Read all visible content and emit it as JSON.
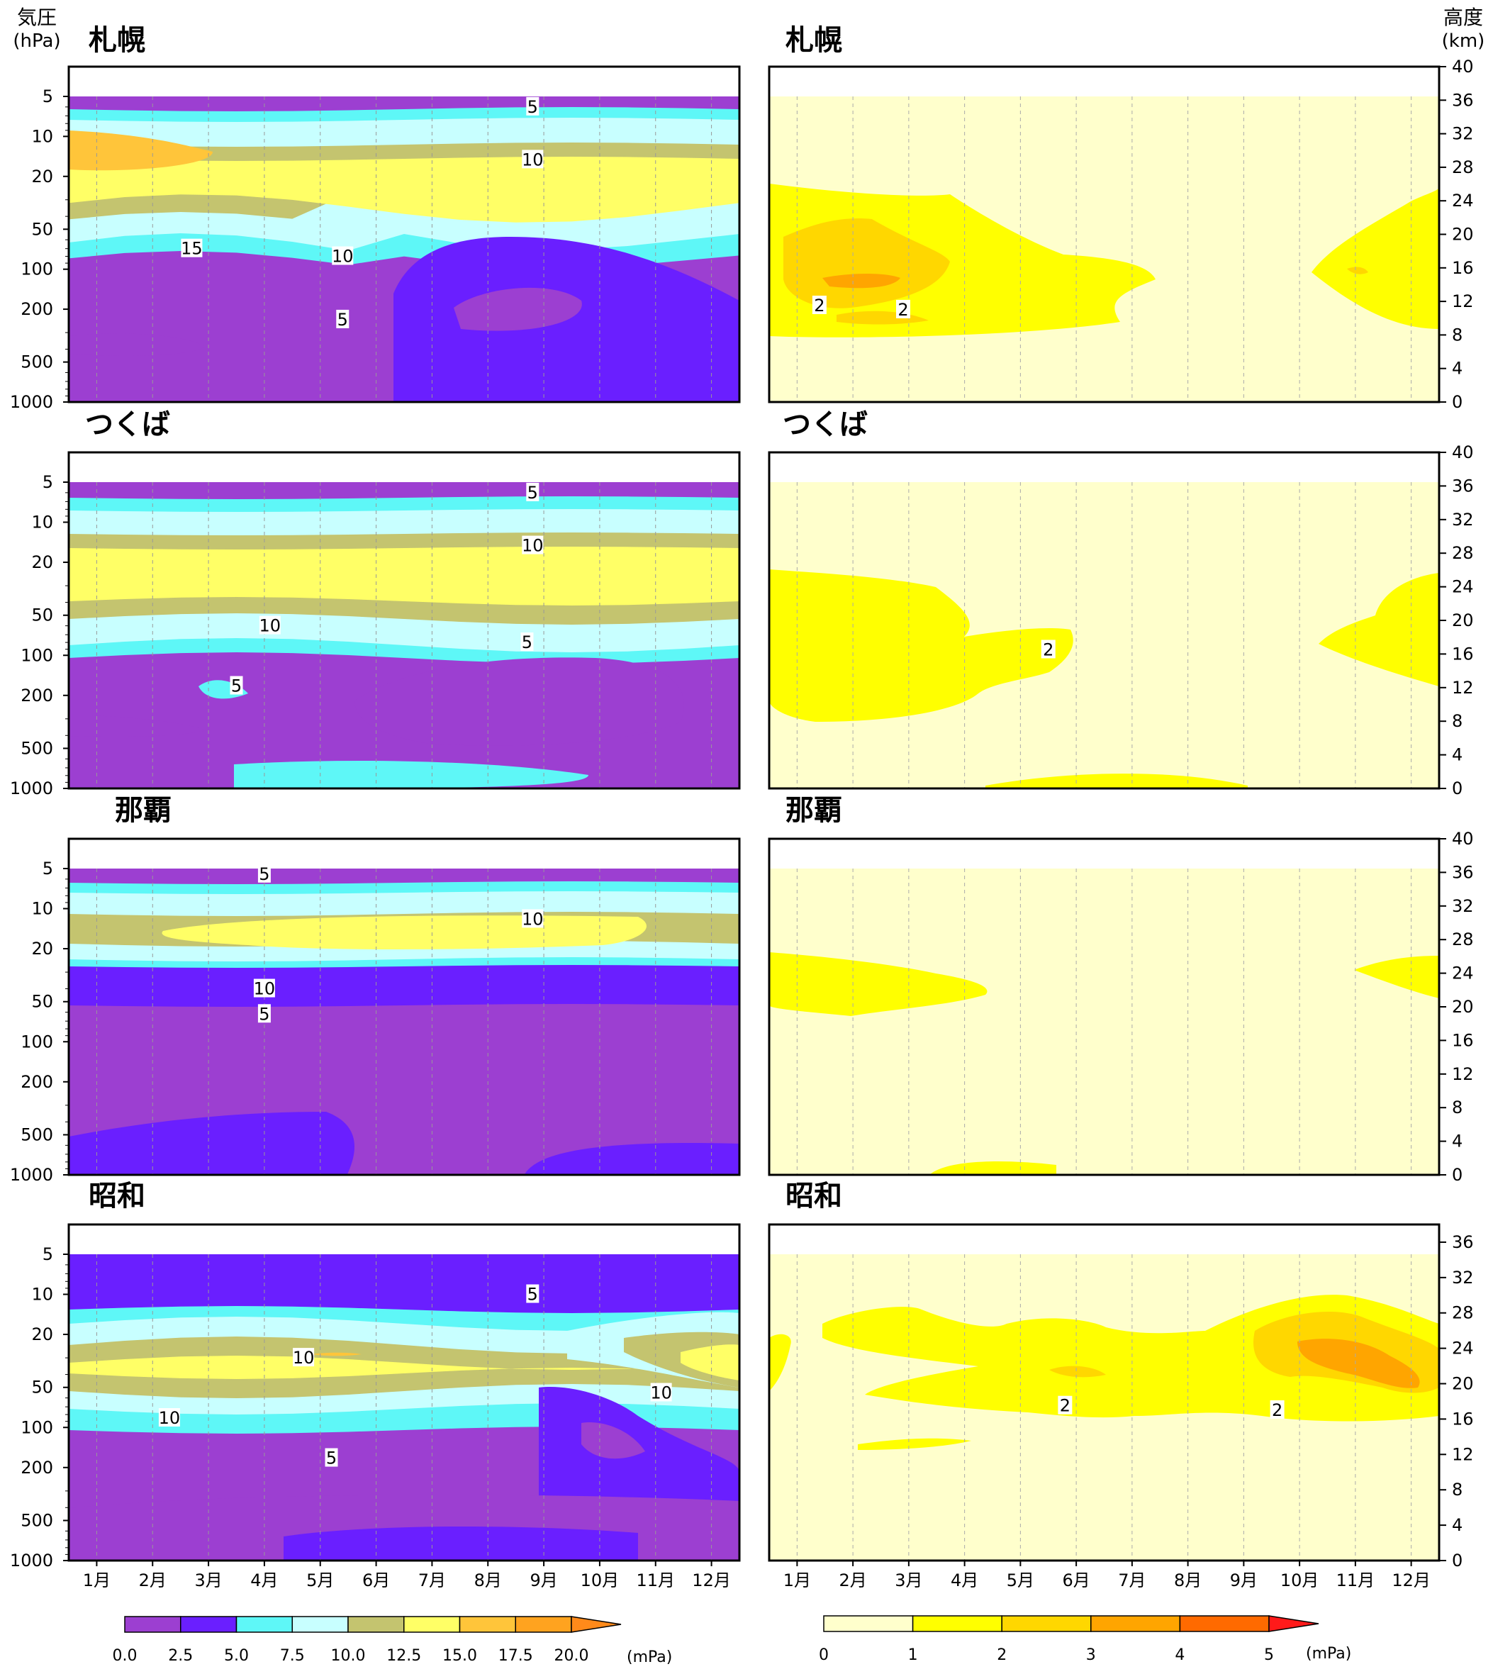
{
  "labels": {
    "pressure_header": "気圧",
    "pressure_unit": "(hPa)",
    "height_header": "高度",
    "height_unit": "(km)",
    "colorbar_unit": "(mPa)"
  },
  "months": [
    "1月",
    "2月",
    "3月",
    "4月",
    "5月",
    "6月",
    "7月",
    "8月",
    "9月",
    "10月",
    "11月",
    "12月"
  ],
  "pressure_ticks": [
    "5",
    "10",
    "20",
    "50",
    "100",
    "200",
    "500",
    "1000"
  ],
  "height_ticks": [
    "40",
    "36",
    "32",
    "28",
    "24",
    "20",
    "16",
    "12",
    "8",
    "4",
    "0"
  ],
  "height_ticks_showa": [
    "36",
    "32",
    "28",
    "24",
    "20",
    "16",
    "12",
    "8",
    "4",
    "0"
  ],
  "colors": {
    "left_scale": [
      "#9c3fd1",
      "#6a1fff",
      "#5ef7f7",
      "#c8ffff",
      "#c4c46f",
      "#ffff66",
      "#ffc53a",
      "#ffa31f"
    ],
    "left_extend": "#ff8a1a",
    "right_scale": [
      "#ffffcc",
      "#ffff00",
      "#ffd700",
      "#ffa500",
      "#ff6a00"
    ],
    "right_extend": "#ff1a1a"
  },
  "colorbar_left_ticks": [
    "0.0",
    "2.5",
    "5.0",
    "7.5",
    "10.0",
    "12.5",
    "15.0",
    "17.5",
    "20.0"
  ],
  "colorbar_right_ticks": [
    "0",
    "1",
    "2",
    "3",
    "4",
    "5"
  ],
  "chart_data": [
    {
      "type": "heatmap",
      "station": "札幌",
      "panel": "left",
      "units": "mPa",
      "yaxis": "pressure (hPa)",
      "title": "札幌",
      "contour_labels": [
        {
          "month": 8.8,
          "pressure": 6,
          "text": "5"
        },
        {
          "month": 8.8,
          "pressure": 15,
          "text": "10"
        },
        {
          "month": 2.7,
          "pressure": 70,
          "text": "15"
        },
        {
          "month": 5.4,
          "pressure": 80,
          "text": "10"
        },
        {
          "month": 5.4,
          "pressure": 240,
          "text": "5"
        }
      ]
    },
    {
      "type": "heatmap",
      "station": "札幌",
      "panel": "right",
      "units": "mPa",
      "yaxis": "height (km)",
      "title": "札幌",
      "contour_labels": [
        {
          "month": 1.4,
          "height": 11.5,
          "text": "2"
        },
        {
          "month": 2.9,
          "height": 11,
          "text": "2"
        }
      ]
    },
    {
      "type": "heatmap",
      "station": "つくば",
      "panel": "left",
      "units": "mPa",
      "yaxis": "pressure (hPa)",
      "title": "つくば",
      "contour_labels": [
        {
          "month": 8.8,
          "pressure": 6,
          "text": "5"
        },
        {
          "month": 8.8,
          "pressure": 15,
          "text": "10"
        },
        {
          "month": 4.1,
          "pressure": 60,
          "text": "10"
        },
        {
          "month": 8.7,
          "pressure": 80,
          "text": "5"
        },
        {
          "month": 3.5,
          "pressure": 170,
          "text": "5"
        }
      ]
    },
    {
      "type": "heatmap",
      "station": "つくば",
      "panel": "right",
      "units": "mPa",
      "yaxis": "height (km)",
      "title": "つくば",
      "contour_labels": [
        {
          "month": 5.5,
          "height": 16.5,
          "text": "2"
        }
      ]
    },
    {
      "type": "heatmap",
      "station": "那覇",
      "panel": "left",
      "units": "mPa",
      "yaxis": "pressure (hPa)",
      "title": "那覇",
      "contour_labels": [
        {
          "month": 4.0,
          "pressure": 5.5,
          "text": "5"
        },
        {
          "month": 8.8,
          "pressure": 12,
          "text": "10"
        },
        {
          "month": 4.0,
          "pressure": 40,
          "text": "10"
        },
        {
          "month": 4.0,
          "pressure": 62,
          "text": "5"
        }
      ]
    },
    {
      "type": "heatmap",
      "station": "那覇",
      "panel": "right",
      "units": "mPa",
      "yaxis": "height (km)",
      "title": "那覇",
      "contour_labels": []
    },
    {
      "type": "heatmap",
      "station": "昭和",
      "panel": "left",
      "units": "mPa",
      "yaxis": "pressure (hPa)",
      "title": "昭和",
      "contour_labels": [
        {
          "month": 8.8,
          "pressure": 10,
          "text": "5"
        },
        {
          "month": 4.7,
          "pressure": 30,
          "text": "10"
        },
        {
          "month": 11.1,
          "pressure": 55,
          "text": "10"
        },
        {
          "month": 2.3,
          "pressure": 85,
          "text": "10"
        },
        {
          "month": 5.2,
          "pressure": 170,
          "text": "5"
        }
      ]
    },
    {
      "type": "heatmap",
      "station": "昭和",
      "panel": "right",
      "units": "mPa",
      "yaxis": "height (km)",
      "title": "昭和",
      "contour_labels": [
        {
          "month": 5.8,
          "height": 17.5,
          "text": "2"
        },
        {
          "month": 9.6,
          "height": 17,
          "text": "2"
        }
      ]
    }
  ]
}
